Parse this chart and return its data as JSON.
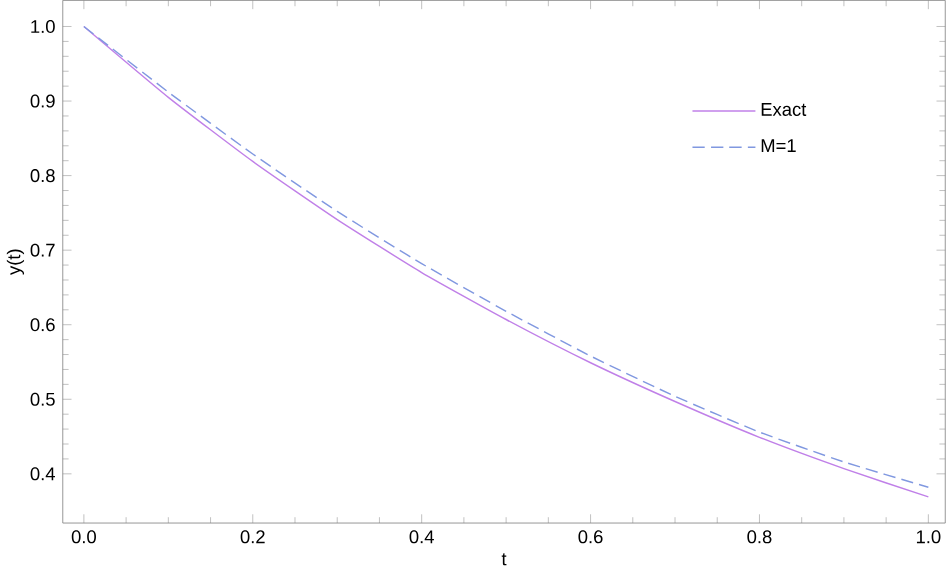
{
  "chart_data": {
    "type": "line",
    "xlabel": "t",
    "ylabel": "y(t)",
    "x": [
      0,
      0.1,
      0.2,
      0.3,
      0.4,
      0.5,
      0.6,
      0.7,
      0.8,
      0.9,
      1.0
    ],
    "series": [
      {
        "name": "Exact",
        "color": "#c080e8",
        "line_style": "solid",
        "values": [
          1.0,
          0.905,
          0.819,
          0.741,
          0.67,
          0.607,
          0.549,
          0.497,
          0.449,
          0.407,
          0.369
        ]
      },
      {
        "name": "M=1",
        "color": "#8098e0",
        "line_style": "dashed",
        "values": [
          1.0,
          0.912,
          0.829,
          0.752,
          0.682,
          0.618,
          0.558,
          0.504,
          0.456,
          0.416,
          0.382
        ]
      }
    ],
    "xlim": [
      -0.025,
      1.02
    ],
    "ylim": [
      0.334,
      1.035
    ],
    "xticks": [
      {
        "value": 0,
        "label": "0.0"
      },
      0.2,
      0.4,
      0.6,
      0.8,
      {
        "value": 1,
        "label": "1.0"
      }
    ],
    "yticks": [
      0.4,
      0.5,
      0.6,
      0.7,
      0.8,
      0.9,
      {
        "value": 1,
        "label": "1.0"
      }
    ],
    "legend": "top right",
    "grid": false,
    "marker": "none"
  }
}
